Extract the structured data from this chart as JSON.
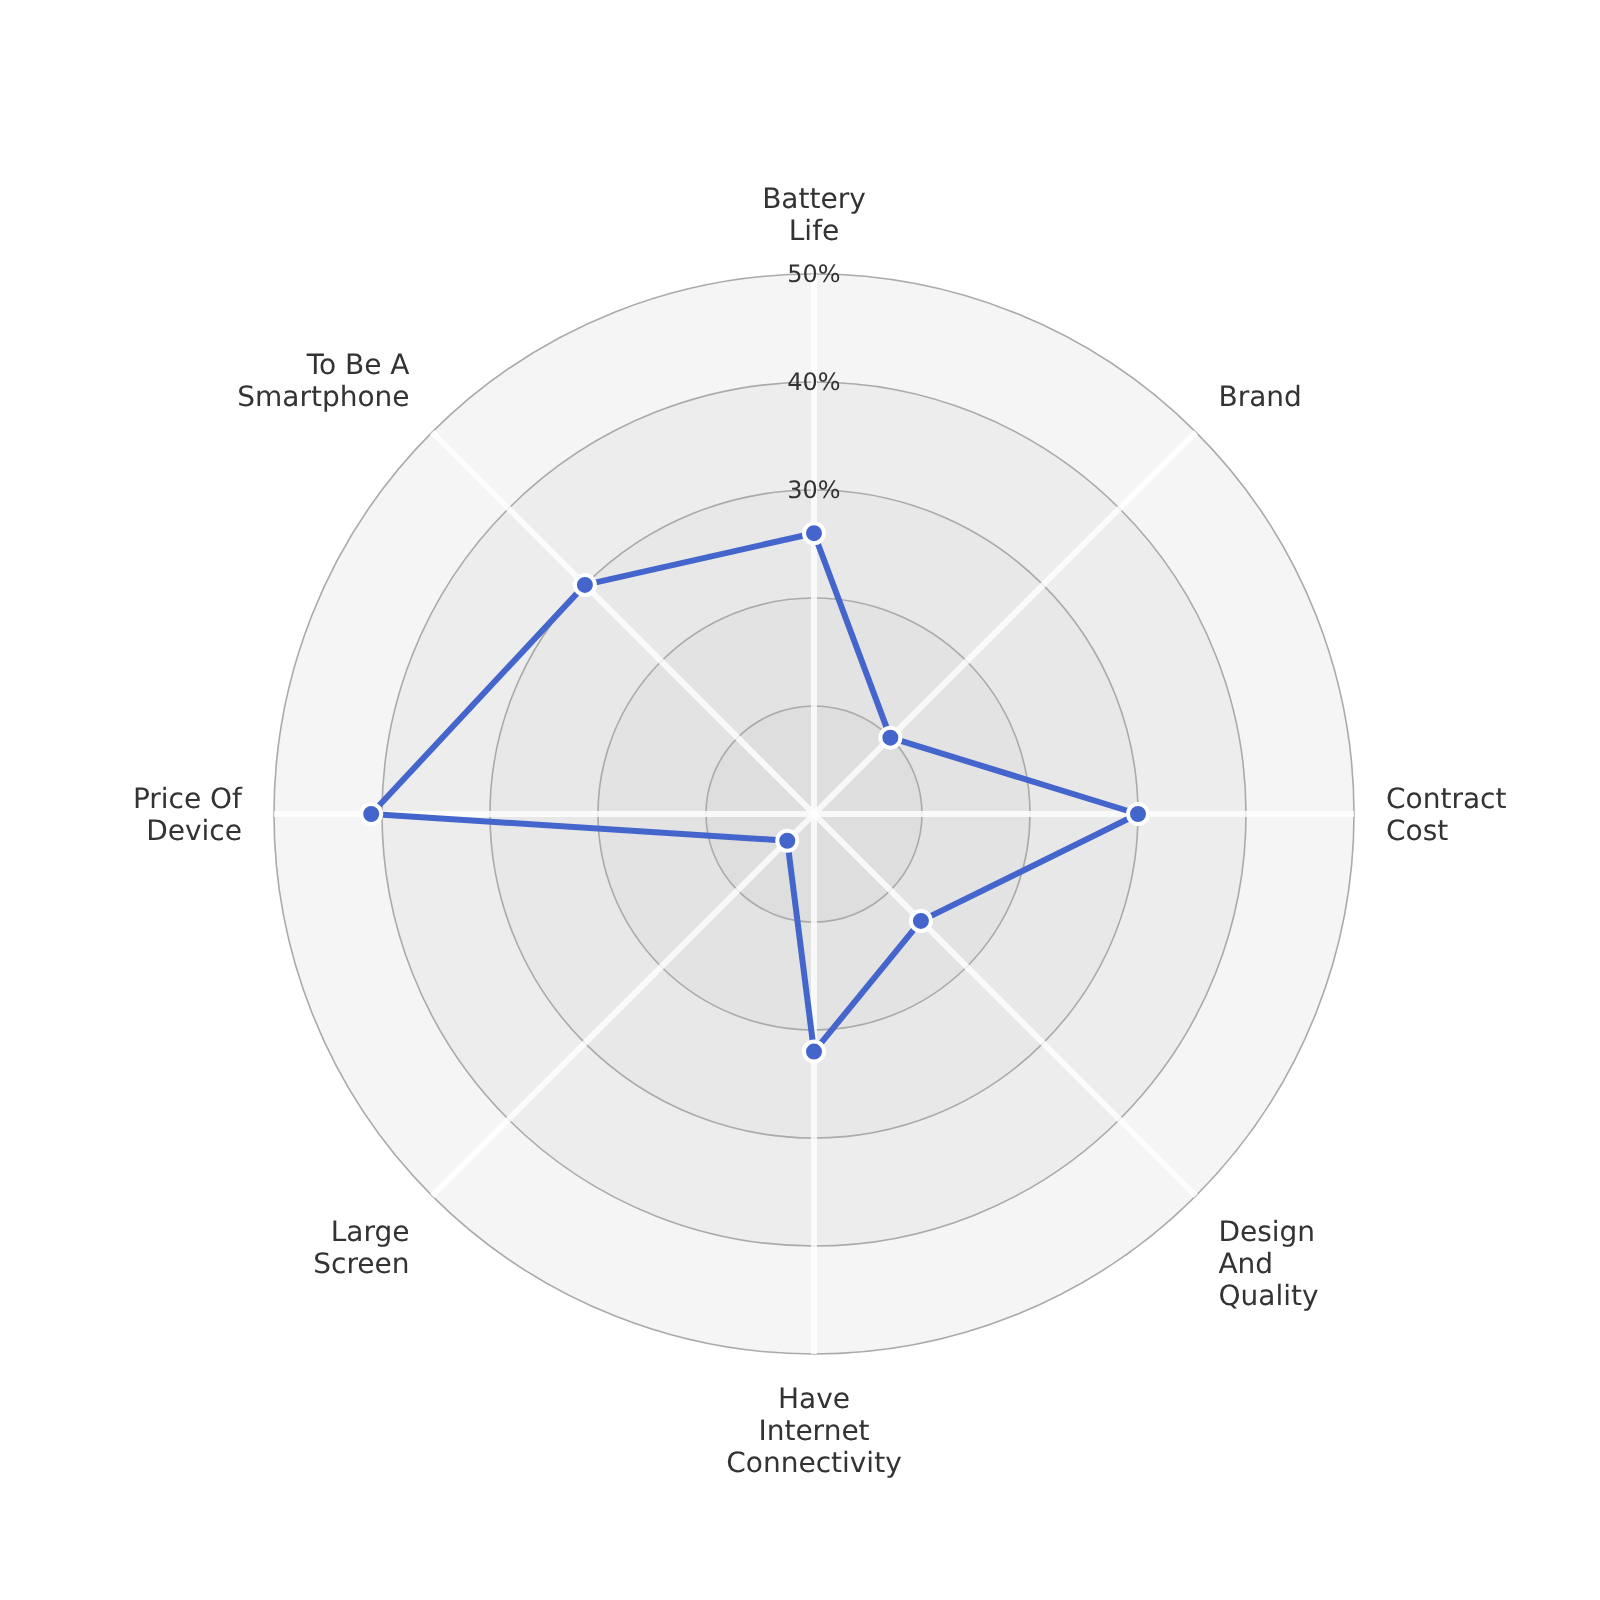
{
  "chart_data": {
    "type": "radar",
    "categories": [
      "Battery Life",
      "Brand",
      "Contract Cost",
      "Design And Quality",
      "Have Internet Connectivity",
      "Large Screen",
      "Price Of Device",
      "To Be A Smartphone"
    ],
    "series": [
      {
        "color": "#4466cc",
        "values": [
          26,
          10,
          30,
          14,
          22,
          3.5,
          41,
          30
        ]
      }
    ],
    "ylim": [
      0,
      50
    ],
    "yticks": [
      {
        "value": 30,
        "label": "30%"
      },
      {
        "value": 40,
        "label": "40%"
      },
      {
        "value": 50,
        "label": "50%"
      }
    ],
    "marker": "circle",
    "line_style": "solid",
    "grid": true
  }
}
